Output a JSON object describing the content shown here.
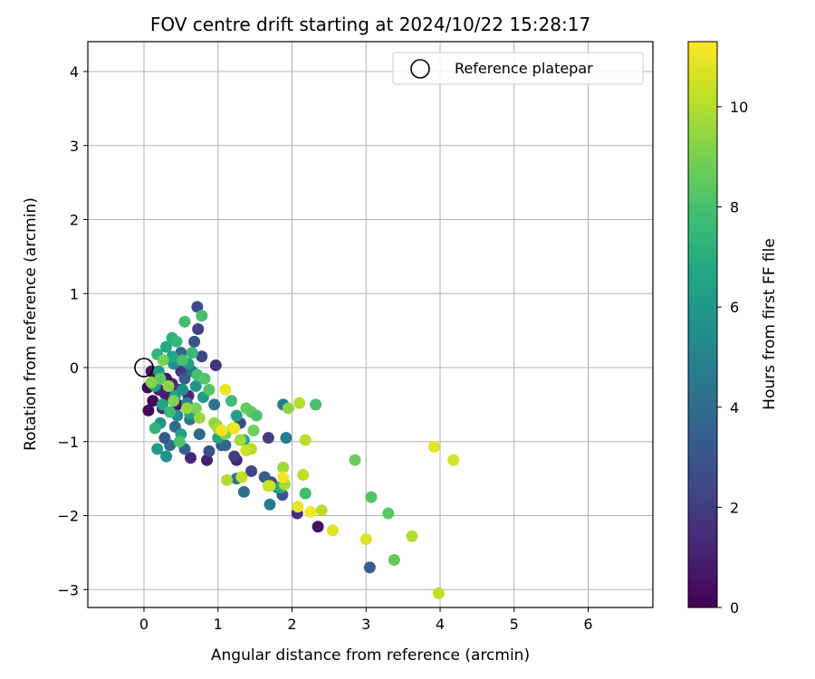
{
  "chart_data": {
    "type": "scatter",
    "title": "FOV centre drift starting at 2024/10/22 15:28:17",
    "xlabel": "Angular distance from reference (arcmin)",
    "ylabel": "Rotation from reference (arcmin)",
    "xlim": [
      -0.75,
      6.85
    ],
    "ylim": [
      -3.25,
      4.42
    ],
    "xticks": [
      "0",
      "1",
      "2",
      "3",
      "4",
      "5",
      "6"
    ],
    "yticks": [
      "−3",
      "−2",
      "−1",
      "0",
      "1",
      "2",
      "3",
      "4"
    ],
    "grid": true,
    "legend": {
      "location": "top-right",
      "entries": [
        "Reference platepar"
      ]
    },
    "reference_point": {
      "x": 0,
      "y": 0,
      "label": "Reference platepar"
    },
    "colorbar": {
      "label": "Hours from first FF file",
      "range": [
        0,
        11.3
      ],
      "ticks": [
        "0",
        "2",
        "4",
        "6",
        "8",
        "10"
      ],
      "colormap": "viridis"
    },
    "points": [
      {
        "x": 0.06,
        "y": -0.58,
        "h": 0.3
      },
      {
        "x": 0.05,
        "y": -0.27,
        "h": 0.2
      },
      {
        "x": 0.1,
        "y": -0.05,
        "h": 0.6
      },
      {
        "x": 0.15,
        "y": -0.1,
        "h": 0.4
      },
      {
        "x": 0.2,
        "y": -0.3,
        "h": 0.8
      },
      {
        "x": 0.28,
        "y": -0.35,
        "h": 1.0
      },
      {
        "x": 0.33,
        "y": -0.4,
        "h": 0.9
      },
      {
        "x": 0.38,
        "y": -0.22,
        "h": 1.2
      },
      {
        "x": 0.45,
        "y": -0.5,
        "h": 0.5
      },
      {
        "x": 0.3,
        "y": -0.15,
        "h": 0.7
      },
      {
        "x": 0.48,
        "y": -0.3,
        "h": 1.5
      },
      {
        "x": 0.12,
        "y": -0.45,
        "h": 0.2
      },
      {
        "x": 0.25,
        "y": -0.55,
        "h": 1.1
      },
      {
        "x": 0.5,
        "y": -0.05,
        "h": 1.8
      },
      {
        "x": 0.6,
        "y": -0.38,
        "h": 1.3
      },
      {
        "x": 0.72,
        "y": 0.82,
        "h": 2.6
      },
      {
        "x": 0.73,
        "y": 0.52,
        "h": 2.2
      },
      {
        "x": 0.68,
        "y": 0.35,
        "h": 3.0
      },
      {
        "x": 0.78,
        "y": 0.15,
        "h": 2.4
      },
      {
        "x": 0.97,
        "y": 0.03,
        "h": 1.7
      },
      {
        "x": 0.63,
        "y": -1.22,
        "h": 1.2
      },
      {
        "x": 0.85,
        "y": -1.25,
        "h": 0.9
      },
      {
        "x": 0.88,
        "y": -1.13,
        "h": 2.8
      },
      {
        "x": 1.05,
        "y": -1.05,
        "h": 3.1
      },
      {
        "x": 1.25,
        "y": -1.25,
        "h": 1.0
      },
      {
        "x": 1.22,
        "y": -1.2,
        "h": 2.0
      },
      {
        "x": 1.3,
        "y": -0.75,
        "h": 2.6
      },
      {
        "x": 1.45,
        "y": -1.4,
        "h": 2.3
      },
      {
        "x": 1.68,
        "y": -0.95,
        "h": 2.0
      },
      {
        "x": 1.72,
        "y": -1.55,
        "h": 2.5
      },
      {
        "x": 1.87,
        "y": -1.72,
        "h": 3.0
      },
      {
        "x": 2.07,
        "y": -1.97,
        "h": 1.5
      },
      {
        "x": 2.35,
        "y": -2.15,
        "h": 0.5
      },
      {
        "x": 3.05,
        "y": -2.7,
        "h": 3.4
      },
      {
        "x": 0.42,
        "y": -0.8,
        "h": 3.8
      },
      {
        "x": 0.35,
        "y": -1.05,
        "h": 4.0
      },
      {
        "x": 0.55,
        "y": -1.1,
        "h": 3.5
      },
      {
        "x": 0.62,
        "y": -0.7,
        "h": 4.5
      },
      {
        "x": 0.28,
        "y": -0.95,
        "h": 3.2
      },
      {
        "x": 0.75,
        "y": -0.9,
        "h": 3.9
      },
      {
        "x": 1.1,
        "y": -1.05,
        "h": 3.6
      },
      {
        "x": 1.25,
        "y": -1.5,
        "h": 4.2
      },
      {
        "x": 1.35,
        "y": -1.68,
        "h": 4.1
      },
      {
        "x": 1.63,
        "y": -1.48,
        "h": 3.3
      },
      {
        "x": 1.7,
        "y": -1.85,
        "h": 4.6
      },
      {
        "x": 1.92,
        "y": -0.95,
        "h": 4.8
      },
      {
        "x": 1.88,
        "y": -0.5,
        "h": 4.6
      },
      {
        "x": 1.8,
        "y": -1.62,
        "h": 5.2
      },
      {
        "x": 0.95,
        "y": -0.5,
        "h": 4.4
      },
      {
        "x": 0.58,
        "y": -0.48,
        "h": 5.0
      },
      {
        "x": 0.5,
        "y": 0.2,
        "h": 3.7
      },
      {
        "x": 0.55,
        "y": -0.15,
        "h": 3.3
      },
      {
        "x": 0.65,
        "y": -0.05,
        "h": 4.3
      },
      {
        "x": 0.45,
        "y": -0.65,
        "h": 5.4
      },
      {
        "x": 0.4,
        "y": 0.05,
        "h": 5.6
      },
      {
        "x": 0.2,
        "y": -0.05,
        "h": 6.0
      },
      {
        "x": 0.15,
        "y": -0.25,
        "h": 6.3
      },
      {
        "x": 0.22,
        "y": -0.75,
        "h": 5.8
      },
      {
        "x": 0.3,
        "y": -1.2,
        "h": 5.7
      },
      {
        "x": 0.18,
        "y": -1.1,
        "h": 6.2
      },
      {
        "x": 0.5,
        "y": -0.9,
        "h": 6.5
      },
      {
        "x": 0.8,
        "y": -0.4,
        "h": 6.0
      },
      {
        "x": 1.0,
        "y": -0.95,
        "h": 6.6
      },
      {
        "x": 1.25,
        "y": -0.65,
        "h": 6.4
      },
      {
        "x": 1.35,
        "y": -0.98,
        "h": 6.8
      },
      {
        "x": 1.85,
        "y": -1.62,
        "h": 6.9
      },
      {
        "x": 0.38,
        "y": 0.15,
        "h": 6.7
      },
      {
        "x": 0.6,
        "y": 0.05,
        "h": 6.1
      },
      {
        "x": 0.7,
        "y": -0.25,
        "h": 5.9
      },
      {
        "x": 0.42,
        "y": -0.38,
        "h": 6.4
      },
      {
        "x": 0.3,
        "y": 0.28,
        "h": 6.8
      },
      {
        "x": 0.25,
        "y": -0.5,
        "h": 6.6
      },
      {
        "x": 0.52,
        "y": -0.3,
        "h": 5.5
      },
      {
        "x": 0.62,
        "y": -0.62,
        "h": 6.3
      },
      {
        "x": 0.55,
        "y": 0.62,
        "h": 7.8
      },
      {
        "x": 0.78,
        "y": 0.7,
        "h": 7.9
      },
      {
        "x": 0.38,
        "y": 0.4,
        "h": 7.2
      },
      {
        "x": 0.44,
        "y": 0.35,
        "h": 7.5
      },
      {
        "x": 0.52,
        "y": 0.1,
        "h": 8.0
      },
      {
        "x": 0.65,
        "y": 0.2,
        "h": 7.6
      },
      {
        "x": 0.72,
        "y": -0.1,
        "h": 7.9
      },
      {
        "x": 0.82,
        "y": -0.15,
        "h": 8.3
      },
      {
        "x": 0.88,
        "y": -0.3,
        "h": 8.2
      },
      {
        "x": 0.98,
        "y": -0.78,
        "h": 8.4
      },
      {
        "x": 1.18,
        "y": -0.45,
        "h": 7.7
      },
      {
        "x": 1.38,
        "y": -0.55,
        "h": 8.6
      },
      {
        "x": 1.45,
        "y": -0.6,
        "h": 8.5
      },
      {
        "x": 1.52,
        "y": -0.65,
        "h": 8.1
      },
      {
        "x": 1.48,
        "y": -0.85,
        "h": 8.8
      },
      {
        "x": 2.32,
        "y": -0.5,
        "h": 8.0
      },
      {
        "x": 2.18,
        "y": -1.7,
        "h": 7.8
      },
      {
        "x": 2.85,
        "y": -1.25,
        "h": 8.7
      },
      {
        "x": 3.07,
        "y": -1.75,
        "h": 8.2
      },
      {
        "x": 3.3,
        "y": -1.97,
        "h": 8.4
      },
      {
        "x": 3.38,
        "y": -2.6,
        "h": 8.6
      },
      {
        "x": 0.18,
        "y": 0.18,
        "h": 7.3
      },
      {
        "x": 0.22,
        "y": -0.15,
        "h": 8.5
      },
      {
        "x": 0.35,
        "y": -0.6,
        "h": 7.7
      },
      {
        "x": 0.15,
        "y": -0.82,
        "h": 7.4
      },
      {
        "x": 0.48,
        "y": -1.0,
        "h": 8.1
      },
      {
        "x": 0.7,
        "y": -0.55,
        "h": 8.9
      },
      {
        "x": 0.26,
        "y": 0.1,
        "h": 9.0
      },
      {
        "x": 0.1,
        "y": -0.2,
        "h": 9.2
      },
      {
        "x": 0.33,
        "y": -0.25,
        "h": 9.3
      },
      {
        "x": 0.4,
        "y": -0.45,
        "h": 9.1
      },
      {
        "x": 0.58,
        "y": -0.55,
        "h": 9.5
      },
      {
        "x": 0.75,
        "y": -0.68,
        "h": 9.6
      },
      {
        "x": 0.95,
        "y": -0.75,
        "h": 9.4
      },
      {
        "x": 1.0,
        "y": -0.82,
        "h": 9.8
      },
      {
        "x": 1.1,
        "y": -0.9,
        "h": 9.2
      },
      {
        "x": 1.2,
        "y": -0.82,
        "h": 10.0
      },
      {
        "x": 1.3,
        "y": -0.98,
        "h": 9.7
      },
      {
        "x": 1.45,
        "y": -1.1,
        "h": 10.1
      },
      {
        "x": 1.12,
        "y": -1.52,
        "h": 9.9
      },
      {
        "x": 1.32,
        "y": -1.48,
        "h": 10.2
      },
      {
        "x": 1.68,
        "y": -1.6,
        "h": 10.3
      },
      {
        "x": 1.88,
        "y": -1.35,
        "h": 9.6
      },
      {
        "x": 1.9,
        "y": -1.58,
        "h": 9.8
      },
      {
        "x": 1.95,
        "y": -0.55,
        "h": 9.4
      },
      {
        "x": 2.1,
        "y": -0.48,
        "h": 10.0
      },
      {
        "x": 2.18,
        "y": -0.98,
        "h": 10.1
      },
      {
        "x": 2.15,
        "y": -1.45,
        "h": 10.2
      },
      {
        "x": 2.4,
        "y": -1.93,
        "h": 10.1
      },
      {
        "x": 3.62,
        "y": -2.28,
        "h": 10.0
      },
      {
        "x": 3.98,
        "y": -3.05,
        "h": 10.2
      },
      {
        "x": 1.1,
        "y": -0.3,
        "h": 11.0
      },
      {
        "x": 1.22,
        "y": -0.82,
        "h": 11.1
      },
      {
        "x": 1.05,
        "y": -0.85,
        "h": 11.0
      },
      {
        "x": 1.88,
        "y": -1.48,
        "h": 11.2
      },
      {
        "x": 2.08,
        "y": -1.88,
        "h": 10.9
      },
      {
        "x": 2.25,
        "y": -1.95,
        "h": 11.1
      },
      {
        "x": 2.55,
        "y": -2.2,
        "h": 10.8
      },
      {
        "x": 3.0,
        "y": -2.32,
        "h": 10.7
      },
      {
        "x": 3.92,
        "y": -1.07,
        "h": 10.9
      },
      {
        "x": 4.18,
        "y": -1.25,
        "h": 10.6
      },
      {
        "x": 1.7,
        "y": -1.6,
        "h": 10.5
      },
      {
        "x": 1.38,
        "y": -1.12,
        "h": 10.4
      }
    ]
  }
}
